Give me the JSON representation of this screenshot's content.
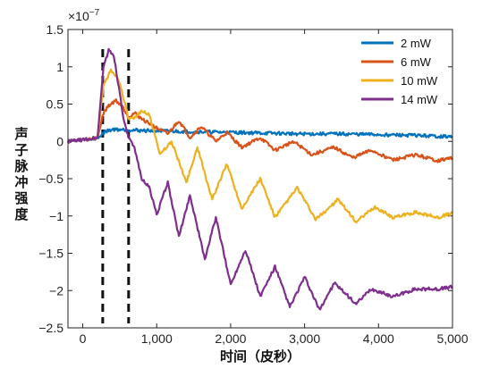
{
  "chart_data": {
    "type": "line",
    "title": "",
    "xlabel": "时间（皮秒）",
    "ylabel": "声子脉冲强度",
    "y_multiplier": "×10",
    "y_multiplier_exp": "−7",
    "xlim": [
      -200,
      5000
    ],
    "ylim": [
      -2.5,
      1.5
    ],
    "x_ticks": [
      0,
      1000,
      2000,
      3000,
      4000,
      5000
    ],
    "x_tick_labels": [
      "0",
      "1,000",
      "2,000",
      "3,000",
      "4,000",
      "5,000"
    ],
    "y_ticks": [
      -2.5,
      -2,
      -1.5,
      -1,
      -0.5,
      0,
      0.5,
      1,
      1.5
    ],
    "y_tick_labels": [
      "−2.5",
      "−2",
      "−1.5",
      "−1",
      "−0.5",
      "0",
      "0.5",
      "1",
      "1.5"
    ],
    "grid": false,
    "legend_position": "top-right",
    "annotations": [
      {
        "type": "vertical-dashed-line",
        "x": 270
      },
      {
        "type": "vertical-dashed-line",
        "x": 620
      }
    ],
    "series": [
      {
        "name": "2 mW",
        "color": "#0072BD",
        "x": [
          -200,
          0,
          200,
          300,
          400,
          500,
          700,
          1000,
          1500,
          2000,
          2500,
          3000,
          3500,
          4000,
          4500,
          5000
        ],
        "y": [
          0.0,
          0.02,
          0.04,
          0.13,
          0.16,
          0.16,
          0.15,
          0.14,
          0.13,
          0.12,
          0.11,
          0.1,
          0.1,
          0.09,
          0.08,
          0.06
        ]
      },
      {
        "name": "6 mW",
        "color": "#D95319",
        "x": [
          -200,
          0,
          200,
          280,
          350,
          450,
          550,
          620,
          700,
          800,
          1000,
          1150,
          1300,
          1450,
          1600,
          1800,
          1950,
          2150,
          2400,
          2600,
          2850,
          3100,
          3400,
          3650,
          3900,
          4200,
          4500,
          4800,
          5000
        ],
        "y": [
          0.0,
          0.02,
          0.05,
          0.38,
          0.48,
          0.55,
          0.45,
          0.32,
          0.38,
          0.3,
          0.18,
          0.1,
          0.28,
          0.05,
          0.2,
          0.0,
          0.12,
          -0.08,
          0.05,
          -0.12,
          0.0,
          -0.18,
          -0.08,
          -0.22,
          -0.12,
          -0.25,
          -0.18,
          -0.26,
          -0.22
        ]
      },
      {
        "name": "10 mW",
        "color": "#EDB120",
        "x": [
          -200,
          0,
          200,
          280,
          380,
          480,
          560,
          620,
          700,
          800,
          900,
          1050,
          1200,
          1400,
          1550,
          1750,
          1950,
          2150,
          2400,
          2600,
          2900,
          3150,
          3450,
          3700,
          3950,
          4200,
          4500,
          4800,
          5000
        ],
        "y": [
          0.0,
          0.02,
          0.05,
          0.75,
          0.95,
          0.85,
          0.55,
          0.3,
          0.3,
          0.42,
          0.35,
          -0.18,
          0.0,
          -0.55,
          -0.08,
          -0.78,
          -0.3,
          -0.9,
          -0.5,
          -1.02,
          -0.62,
          -1.05,
          -0.78,
          -1.08,
          -0.88,
          -1.02,
          -0.95,
          -1.02,
          -0.96
        ]
      },
      {
        "name": "14 mW",
        "color": "#7E2F8E",
        "x": [
          -200,
          0,
          200,
          280,
          350,
          420,
          500,
          560,
          620,
          700,
          800,
          900,
          1000,
          1150,
          1300,
          1450,
          1650,
          1800,
          2000,
          2200,
          2400,
          2600,
          2800,
          3000,
          3200,
          3400,
          3700,
          3900,
          4200,
          4500,
          4800,
          5000
        ],
        "y": [
          0.0,
          0.02,
          0.05,
          1.0,
          1.22,
          1.15,
          0.65,
          0.25,
          0.05,
          -0.1,
          -0.5,
          -0.62,
          -0.98,
          -0.55,
          -1.28,
          -0.72,
          -1.58,
          -1.02,
          -1.92,
          -1.45,
          -2.08,
          -1.68,
          -2.22,
          -1.82,
          -2.26,
          -1.9,
          -2.18,
          -1.98,
          -2.08,
          -1.98,
          -1.98,
          -1.95
        ]
      }
    ]
  }
}
